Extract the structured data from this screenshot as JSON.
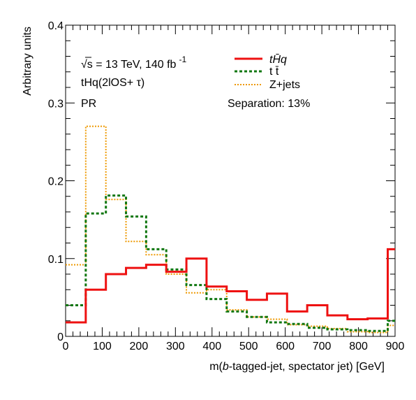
{
  "chart_data": {
    "type": "step-histogram",
    "xlabel": "m(b-tagged-jet, spectator jet) [GeV]",
    "ylabel": "Arbitrary units",
    "xlim": [
      0,
      900
    ],
    "ylim": [
      0,
      0.4
    ],
    "x_ticks": [
      "0",
      "100",
      "200",
      "300",
      "400",
      "500",
      "600",
      "700",
      "800",
      "900"
    ],
    "y_ticks": [
      "0",
      "0.1",
      "0.2",
      "0.3",
      "0.4"
    ],
    "bin_edges": [
      0,
      55,
      110,
      165,
      220,
      275,
      330,
      385,
      440,
      495,
      550,
      605,
      660,
      715,
      770,
      825,
      880,
      900
    ],
    "series": [
      {
        "name": "tHq",
        "color": "#ee1111",
        "style": "solid",
        "values": [
          0.018,
          0.06,
          0.08,
          0.088,
          0.092,
          0.083,
          0.1,
          0.064,
          0.058,
          0.047,
          0.055,
          0.032,
          0.04,
          0.027,
          0.022,
          0.023,
          0.112,
          0.112
        ]
      },
      {
        "name": "t t̄",
        "color": "#117711",
        "style": "dashed",
        "values": [
          0.04,
          0.158,
          0.181,
          0.154,
          0.112,
          0.086,
          0.066,
          0.048,
          0.032,
          0.025,
          0.018,
          0.016,
          0.011,
          0.009,
          0.008,
          0.007,
          0.02,
          0.02
        ]
      },
      {
        "name": "Z+jets",
        "color": "#ee9900",
        "style": "dotted",
        "values": [
          0.092,
          0.27,
          0.176,
          0.122,
          0.105,
          0.08,
          0.056,
          0.06,
          0.034,
          0.025,
          0.022,
          0.015,
          0.013,
          0.01,
          0.006,
          0.005,
          0.014,
          0.014
        ]
      }
    ],
    "legend": {
      "placement": "top-right",
      "entries": [
        "tH̄q",
        "t t̄",
        "Z+jets"
      ]
    },
    "annotations": {
      "energy_prefix": "√s = 13 TeV, 140 fb",
      "energy_exponent": "-1",
      "channel": "tHq(2lOS+ τ)",
      "region": "PR",
      "separation": "Separation: 13%"
    },
    "grid": false
  }
}
